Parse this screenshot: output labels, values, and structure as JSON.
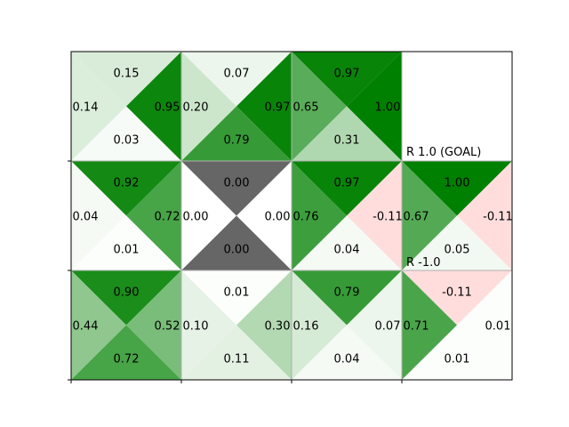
{
  "chart_data": {
    "type": "heatmap",
    "title": "",
    "xlabel": "",
    "ylabel": "",
    "rows": 3,
    "cols": 4,
    "triangle_order": [
      "up",
      "left",
      "right",
      "down"
    ],
    "colors": {
      "positive": "#008000",
      "negative": "#ffdddd",
      "wall": "#666666",
      "background": "#ffffff"
    },
    "cells": [
      {
        "row": 0,
        "col": 0,
        "kind": "q",
        "up": "0.15",
        "left": "0.14",
        "right": "0.95",
        "down": "0.03",
        "up_v": 0.15,
        "left_v": 0.14,
        "right_v": 0.95,
        "down_v": 0.03
      },
      {
        "row": 0,
        "col": 1,
        "kind": "q",
        "up": "0.07",
        "left": "0.20",
        "right": "0.97",
        "down": "0.79",
        "up_v": 0.07,
        "left_v": 0.2,
        "right_v": 0.97,
        "down_v": 0.79
      },
      {
        "row": 0,
        "col": 2,
        "kind": "q",
        "up": "0.97",
        "left": "0.65",
        "right": "1.00",
        "down": "0.31",
        "up_v": 0.97,
        "left_v": 0.65,
        "right_v": 1.0,
        "down_v": 0.31
      },
      {
        "row": 0,
        "col": 3,
        "kind": "terminal",
        "label": "R 1.0 (GOAL)"
      },
      {
        "row": 1,
        "col": 0,
        "kind": "q",
        "up": "0.92",
        "left": "0.04",
        "right": "0.72",
        "down": "0.01",
        "up_v": 0.92,
        "left_v": 0.04,
        "right_v": 0.72,
        "down_v": 0.01
      },
      {
        "row": 1,
        "col": 1,
        "kind": "wall",
        "up": "0.00",
        "left": "0.00",
        "right": "0.00",
        "down": "0.00"
      },
      {
        "row": 1,
        "col": 2,
        "kind": "q",
        "up": "0.97",
        "left": "0.76",
        "right": "-0.11",
        "down": "0.04",
        "up_v": 0.97,
        "left_v": 0.76,
        "right_v": -0.11,
        "down_v": 0.04
      },
      {
        "row": 1,
        "col": 3,
        "kind": "q",
        "up": "1.00",
        "left": "0.67",
        "right": "-0.11",
        "down": "0.05",
        "up_v": 1.0,
        "left_v": 0.67,
        "right_v": -0.11,
        "down_v": 0.05,
        "label": "R -1.0"
      },
      {
        "row": 2,
        "col": 0,
        "kind": "q",
        "up": "0.90",
        "left": "0.44",
        "right": "0.52",
        "down": "0.72",
        "up_v": 0.9,
        "left_v": 0.44,
        "right_v": 0.52,
        "down_v": 0.72
      },
      {
        "row": 2,
        "col": 1,
        "kind": "q",
        "up": "0.01",
        "left": "0.10",
        "right": "0.30",
        "down": "0.11",
        "up_v": 0.01,
        "left_v": 0.1,
        "right_v": 0.3,
        "down_v": 0.11
      },
      {
        "row": 2,
        "col": 2,
        "kind": "q",
        "up": "0.79",
        "left": "0.16",
        "right": "0.07",
        "down": "0.04",
        "up_v": 0.79,
        "left_v": 0.16,
        "right_v": 0.07,
        "down_v": 0.04
      },
      {
        "row": 2,
        "col": 3,
        "kind": "q",
        "up": "-0.11",
        "left": "0.71",
        "right": "0.01",
        "down": "0.01",
        "up_v": -0.11,
        "left_v": 0.71,
        "right_v": 0.01,
        "down_v": 0.01
      }
    ]
  }
}
